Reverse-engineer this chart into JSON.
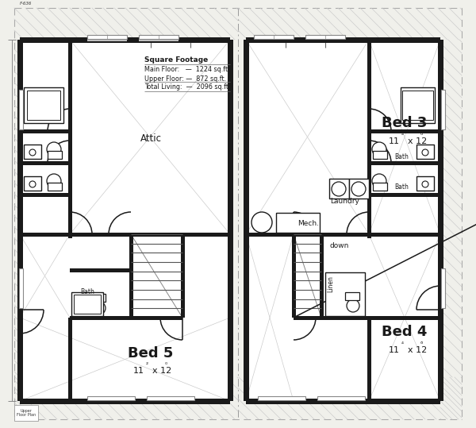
{
  "bg_color": "#f0f0eb",
  "wall_color": "#1a1a1a",
  "gray_fill": "#c8c8c8",
  "light_gray": "#d8d8d8",
  "white": "#ffffff",
  "text_color": "#1a1a1a",
  "dashed_color": "#aaaaaa",
  "sq_title": "Square Footage",
  "sq_main": "Main Floor:   —  1224 sq.ft.",
  "sq_upper": "Upper Floor: —  872 sq.ft.",
  "sq_total": "Total Living:  —  2096 sq.ft.",
  "label_attic": "Attic",
  "label_mech": "Mech.",
  "label_laundry": "Laundry",
  "label_bath": "Bath",
  "label_linen": "Linen",
  "label_down": "down",
  "label_bed3": "Bed 3",
  "label_bed4": "Bed 4",
  "label_bed5": "Bed 5",
  "label_bed3_size": "11  x 12",
  "label_bed4_size": "11  x 12",
  "label_bed5_size": "11  x 12"
}
